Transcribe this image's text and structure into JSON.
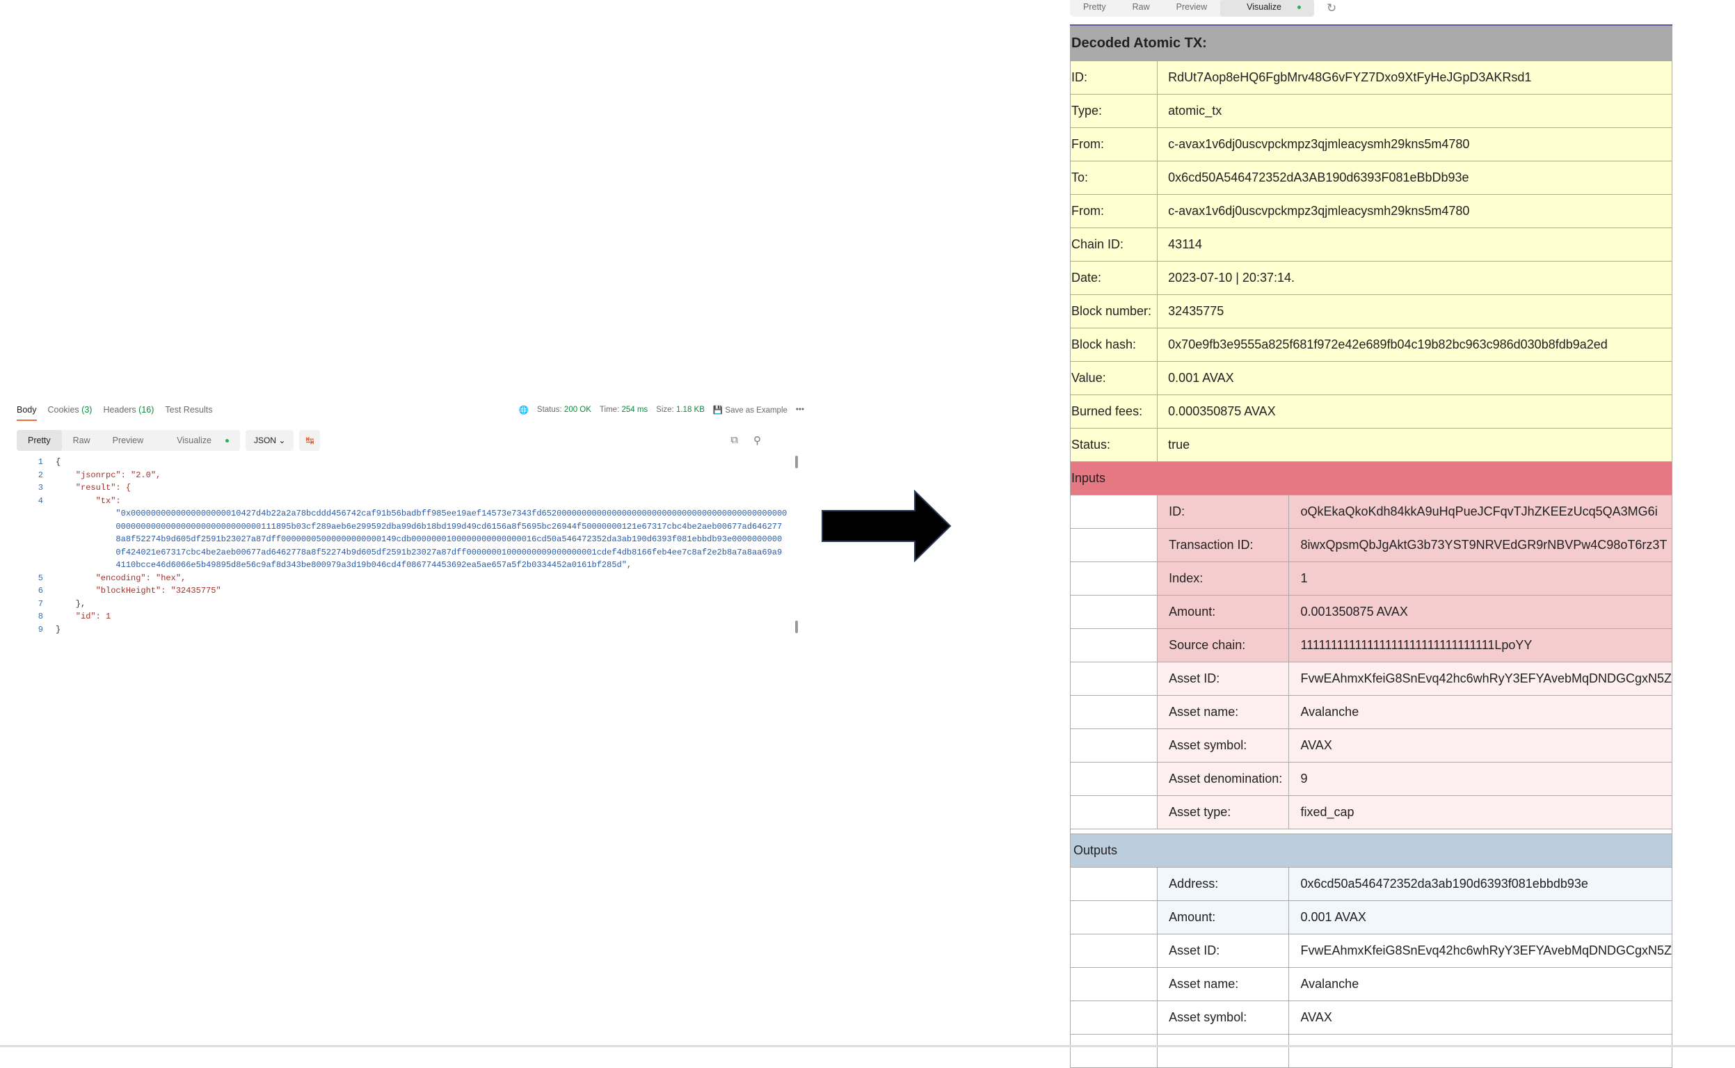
{
  "response": {
    "tabs": [
      {
        "label": "Body",
        "count": ""
      },
      {
        "label": "Cookies",
        "count": "(3)"
      },
      {
        "label": "Headers",
        "count": "(16)"
      },
      {
        "label": "Test Results",
        "count": ""
      }
    ],
    "status_label": "Status:",
    "status_value": "200 OK",
    "time_label": "Time:",
    "time_value": "254 ms",
    "size_label": "Size:",
    "size_value": "1.18 KB",
    "save_example": "Save as Example",
    "view_modes": [
      "Pretty",
      "Raw",
      "Preview",
      "Visualize"
    ],
    "format": "JSON",
    "code_lines": [
      {
        "num": "1",
        "text": "{"
      },
      {
        "num": "2",
        "text": "    \"jsonrpc\": \"2.0\","
      },
      {
        "num": "3",
        "text": "    \"result\": {"
      },
      {
        "num": "4",
        "text": "        \"tx\":"
      },
      {
        "num": "",
        "text": "            \"0x0000000000000000000010427d4b22a2a78bcddd456742caf91b56badbff985ee19aef14573e7343fd6520000000000000000000000000000000000000000000000"
      },
      {
        "num": "",
        "text": "            00000000000000000000000000000111895b03cf289aeb6e299592dba99d6b18bd199d49cd6156a8f5695bc26944f50000000121e67317cbc4be2aeb00677ad646277"
      },
      {
        "num": "",
        "text": "            8a8f52274b9d605df2591b23027a87dff00000005000000000000149cdb0000000100000000000000016cd50a546472352da3ab190d6393f081ebbdb93e0000000000"
      },
      {
        "num": "",
        "text": "            0f424021e67317cbc4be2aeb00677ad6462778a8f52274b9d605df2591b23027a87dff00000001000000009000000001cdef4db8166feb4ee7c8af2e2b8a7a8aa69a9"
      },
      {
        "num": "",
        "text": "            4110bcce46d6066e5b49895d8e56c9af8d343be800979a3d19b046cd4f086774453692ea5ae657a5f2b0334452a0161bf285d\","
      },
      {
        "num": "5",
        "text": "        \"encoding\": \"hex\","
      },
      {
        "num": "6",
        "text": "        \"blockHeight\": \"32435775\""
      },
      {
        "num": "7",
        "text": "    },"
      },
      {
        "num": "8",
        "text": "    \"id\": 1"
      },
      {
        "num": "9",
        "text": "}"
      }
    ]
  },
  "visualize": {
    "tabs": [
      "Pretty",
      "Raw",
      "Preview",
      "Visualize"
    ],
    "title": "Decoded Atomic TX:",
    "rows": [
      {
        "label": "ID:",
        "value": "RdUt7Aop8eHQ6FgbMrv48G6vFYZ7Dxo9XtFyHeJGpD3AKRsd1"
      },
      {
        "label": "Type:",
        "value": "atomic_tx"
      },
      {
        "label": "From:",
        "value": "c-avax1v6dj0uscvpckmpz3qjmleacysmh29kns5m4780"
      },
      {
        "label": "To:",
        "value": "0x6cd50A546472352dA3AB190d6393F081eBbDb93e"
      },
      {
        "label": "From:",
        "value": "c-avax1v6dj0uscvpckmpz3qjmleacysmh29kns5m4780"
      },
      {
        "label": "Chain ID:",
        "value": "43114"
      },
      {
        "label": "Date:",
        "value": "2023-07-10 | 20:37:14."
      },
      {
        "label": "Block number:",
        "value": "32435775"
      },
      {
        "label": "Block hash:",
        "value": "0x70e9fb3e9555a825f681f972e42e689fb04c19b82bc963c986d030b8fdb9a2ed"
      },
      {
        "label": "Value:",
        "value": "0.001 AVAX"
      },
      {
        "label": "Burned fees:",
        "value": "0.000350875 AVAX"
      },
      {
        "label": "Status:",
        "value": "true"
      }
    ],
    "inputs_title": "Inputs",
    "inputs": [
      {
        "label": "ID:",
        "value": "oQkEkaQkoKdh84kkA9uHqPueJCFqvTJhZKEEzUcq5QA3MG6i",
        "group": "utxo"
      },
      {
        "label": "Transaction ID:",
        "value": "8iwxQpsmQbJgAktG3b73YST9NRVEdGR9rNBVPw4C98oT6rz3T",
        "group": "utxo"
      },
      {
        "label": "Index:",
        "value": "1",
        "group": "utxo"
      },
      {
        "label": "Amount:",
        "value": "0.001350875 AVAX",
        "group": "utxo"
      },
      {
        "label": "Source chain:",
        "value": "11111111111111111111111111111111LpoYY",
        "group": "utxo"
      },
      {
        "label": "Asset ID:",
        "value": "FvwEAhmxKfeiG8SnEvq42hc6whRyY3EFYAvebMqDNDGCgxN5Z",
        "group": "asset"
      },
      {
        "label": "Asset name:",
        "value": "Avalanche",
        "group": "asset"
      },
      {
        "label": "Asset symbol:",
        "value": "AVAX",
        "group": "asset"
      },
      {
        "label": "Asset denomination:",
        "value": "9",
        "group": "asset"
      },
      {
        "label": "Asset type:",
        "value": "fixed_cap",
        "group": "asset"
      }
    ],
    "outputs_title": "Outputs",
    "outputs": [
      {
        "label": "Address:",
        "value": "0x6cd50a546472352da3ab190d6393f081ebbdb93e",
        "group": "utxo"
      },
      {
        "label": "Amount:",
        "value": "0.001 AVAX",
        "group": "utxo"
      },
      {
        "label": "Asset ID:",
        "value": "FvwEAhmxKfeiG8SnEvq42hc6whRyY3EFYAvebMqDNDGCgxN5Z",
        "group": "asset"
      },
      {
        "label": "Asset name:",
        "value": "Avalanche",
        "group": "asset"
      },
      {
        "label": "Asset symbol:",
        "value": "AVAX",
        "group": "asset"
      },
      {
        "label": "",
        "value": "",
        "group": "asset"
      }
    ]
  },
  "colors": {
    "accent": "#f26b3a",
    "success": "#0a8a3c",
    "main_rows": "#ffffd2",
    "inputs_header": "#e57883",
    "outputs_header": "#bccede"
  }
}
